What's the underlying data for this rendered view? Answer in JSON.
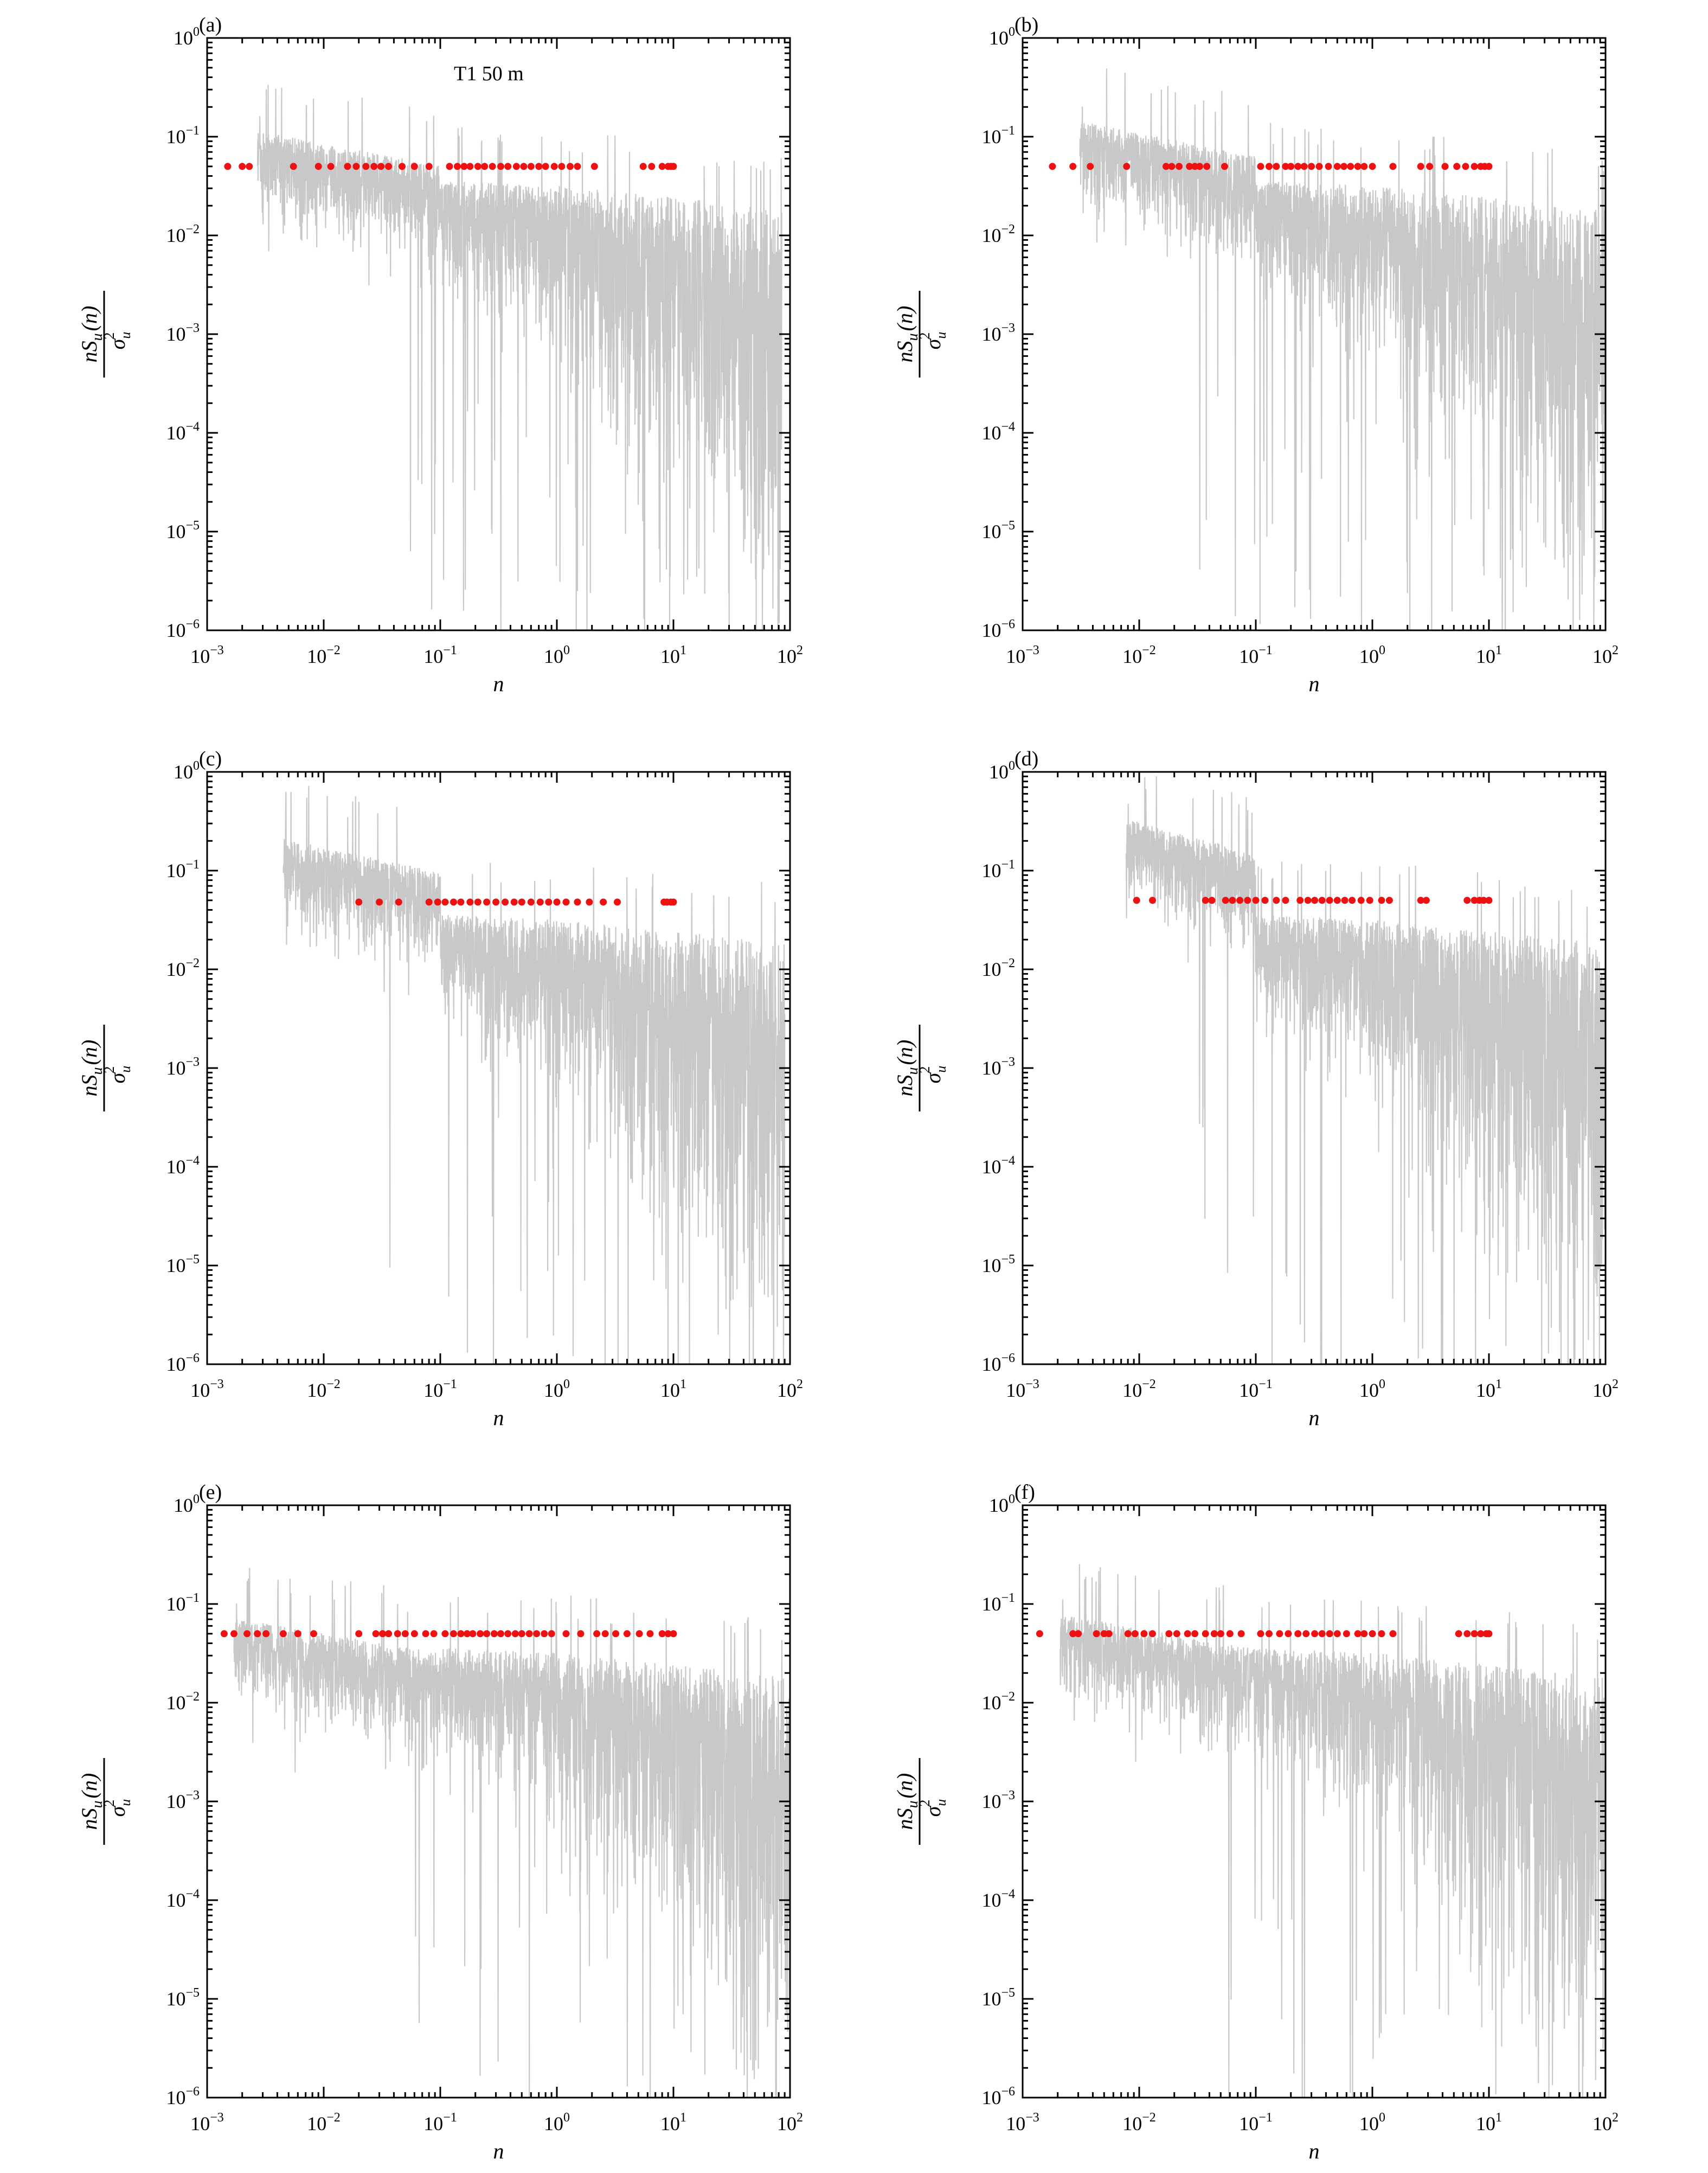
{
  "figure": {
    "panels": [
      {
        "id": "a",
        "label": "(a)",
        "annotation": "T1 50 m"
      },
      {
        "id": "b",
        "label": "(b)",
        "annotation": ""
      },
      {
        "id": "c",
        "label": "(c)",
        "annotation": ""
      },
      {
        "id": "d",
        "label": "(d)",
        "annotation": ""
      },
      {
        "id": "e",
        "label": "(e)",
        "annotation": ""
      },
      {
        "id": "f",
        "label": "(f)",
        "annotation": ""
      }
    ],
    "axis_text": {
      "xlabel": "n",
      "ylabel_numerator": "nS",
      "ylabel_sub": "u",
      "ylabel_arg": "(n)",
      "ylabel_denominator": "σ",
      "ylabel_den_sub": "u",
      "ylabel_den_sup": "2"
    },
    "x_ticks": [
      {
        "base": "10",
        "exp": "−3"
      },
      {
        "base": "10",
        "exp": "−2"
      },
      {
        "base": "10",
        "exp": "−1"
      },
      {
        "base": "10",
        "exp": "0"
      },
      {
        "base": "10",
        "exp": "1"
      },
      {
        "base": "10",
        "exp": "2"
      }
    ],
    "y_ticks": [
      {
        "base": "10",
        "exp": "0"
      },
      {
        "base": "10",
        "exp": "−1"
      },
      {
        "base": "10",
        "exp": "−2"
      },
      {
        "base": "10",
        "exp": "−3"
      },
      {
        "base": "10",
        "exp": "−4"
      },
      {
        "base": "10",
        "exp": "−5"
      },
      {
        "base": "10",
        "exp": "−6"
      }
    ],
    "colors": {
      "spectrum": "#c8c8c8",
      "points": "#ee1111",
      "axes": "#000000"
    }
  },
  "chart_data": [
    {
      "type": "line",
      "panel": "a",
      "xscale": "log",
      "yscale": "log",
      "xlim": [
        0.001,
        100
      ],
      "ylim": [
        1e-06,
        1
      ],
      "grid": false,
      "spectrum": {
        "color": "#c8c8c8",
        "n_range": [
          0.0027,
          85
        ],
        "peak_y": 0.16,
        "low_end_y": 0.017,
        "min_y": 1e-06
      },
      "points": {
        "color": "#ee1111",
        "y": 0.05,
        "x": [
          0.0015,
          0.002,
          0.0023,
          0.0055,
          0.009,
          0.0115,
          0.016,
          0.019,
          0.023,
          0.027,
          0.031,
          0.036,
          0.047,
          0.06,
          0.08,
          0.12,
          0.14,
          0.16,
          0.18,
          0.21,
          0.24,
          0.28,
          0.33,
          0.38,
          0.45,
          0.52,
          0.6,
          0.7,
          0.8,
          0.95,
          1.1,
          1.3,
          1.5,
          2.1,
          5.5,
          6.5,
          8.0,
          9.0,
          9.5,
          10.0
        ]
      }
    },
    {
      "type": "line",
      "panel": "b",
      "xscale": "log",
      "yscale": "log",
      "xlim": [
        0.001,
        100
      ],
      "ylim": [
        1e-06,
        1
      ],
      "grid": false,
      "spectrum": {
        "color": "#c8c8c8",
        "n_range": [
          0.0031,
          100
        ],
        "peak_y": 0.2,
        "low_end_y": 0.018,
        "min_y": 1e-06
      },
      "points": {
        "color": "#ee1111",
        "y": 0.05,
        "x": [
          0.0018,
          0.0027,
          0.0038,
          0.0078,
          0.017,
          0.019,
          0.022,
          0.027,
          0.03,
          0.033,
          0.038,
          0.054,
          0.11,
          0.13,
          0.15,
          0.18,
          0.2,
          0.23,
          0.26,
          0.3,
          0.35,
          0.42,
          0.5,
          0.57,
          0.65,
          0.75,
          0.85,
          1.0,
          1.5,
          2.6,
          3.1,
          4.2,
          5.3,
          6.3,
          7.5,
          8.5,
          9.2,
          10.0
        ]
      }
    },
    {
      "type": "line",
      "panel": "c",
      "xscale": "log",
      "yscale": "log",
      "xlim": [
        0.001,
        100
      ],
      "ylim": [
        1e-06,
        1
      ],
      "grid": false,
      "spectrum": {
        "color": "#c8c8c8",
        "n_range": [
          0.0045,
          90
        ],
        "peak_y": 0.3,
        "low_end_y": 0.0035,
        "min_y": 1e-06
      },
      "points": {
        "color": "#ee1111",
        "y": 0.048,
        "x": [
          0.02,
          0.03,
          0.044,
          0.08,
          0.095,
          0.11,
          0.13,
          0.15,
          0.18,
          0.21,
          0.25,
          0.3,
          0.36,
          0.43,
          0.5,
          0.6,
          0.72,
          0.85,
          1.0,
          1.2,
          1.5,
          1.9,
          2.5,
          3.3,
          8.3,
          8.8,
          9.5,
          10.0
        ]
      }
    },
    {
      "type": "line",
      "panel": "d",
      "xscale": "log",
      "yscale": "log",
      "xlim": [
        0.001,
        100
      ],
      "ylim": [
        1e-06,
        1
      ],
      "grid": false,
      "spectrum": {
        "color": "#c8c8c8",
        "n_range": [
          0.0077,
          100
        ],
        "peak_y": 0.47,
        "low_end_y": 0.017,
        "min_y": 1e-06
      },
      "points": {
        "color": "#ee1111",
        "y": 0.05,
        "x": [
          0.0095,
          0.013,
          0.037,
          0.042,
          0.055,
          0.063,
          0.073,
          0.085,
          0.1,
          0.12,
          0.15,
          0.18,
          0.24,
          0.28,
          0.32,
          0.37,
          0.43,
          0.5,
          0.58,
          0.67,
          0.8,
          0.95,
          1.2,
          1.4,
          2.6,
          2.9,
          6.5,
          7.5,
          8.3,
          9.0,
          10.0
        ]
      }
    },
    {
      "type": "line",
      "panel": "e",
      "xscale": "log",
      "yscale": "log",
      "xlim": [
        0.001,
        100
      ],
      "ylim": [
        1e-06,
        1
      ],
      "grid": false,
      "spectrum": {
        "color": "#c8c8c8",
        "n_range": [
          0.0017,
          100
        ],
        "peak_y": 0.1,
        "low_end_y": 0.004,
        "min_y": 1e-06
      },
      "points": {
        "color": "#ee1111",
        "y": 0.05,
        "x": [
          0.0014,
          0.0017,
          0.0022,
          0.0027,
          0.0032,
          0.0045,
          0.006,
          0.0082,
          0.02,
          0.028,
          0.032,
          0.036,
          0.043,
          0.05,
          0.06,
          0.075,
          0.088,
          0.11,
          0.13,
          0.15,
          0.17,
          0.19,
          0.22,
          0.25,
          0.29,
          0.33,
          0.38,
          0.44,
          0.5,
          0.58,
          0.67,
          0.78,
          0.9,
          1.2,
          1.6,
          2.2,
          2.6,
          3.2,
          4.0,
          5.1,
          6.3,
          8.0,
          9.0,
          10.0
        ]
      }
    },
    {
      "type": "line",
      "panel": "f",
      "xscale": "log",
      "yscale": "log",
      "xlim": [
        0.001,
        100
      ],
      "ylim": [
        1e-06,
        1
      ],
      "grid": false,
      "spectrum": {
        "color": "#c8c8c8",
        "n_range": [
          0.0021,
          100
        ],
        "peak_y": 0.11,
        "low_end_y": 0.0006,
        "min_y": 1e-06
      },
      "points": {
        "color": "#ee1111",
        "y": 0.05,
        "x": [
          0.0014,
          0.0027,
          0.003,
          0.0043,
          0.005,
          0.0055,
          0.008,
          0.0092,
          0.011,
          0.013,
          0.018,
          0.021,
          0.026,
          0.03,
          0.037,
          0.044,
          0.05,
          0.06,
          0.075,
          0.11,
          0.13,
          0.16,
          0.19,
          0.23,
          0.27,
          0.32,
          0.37,
          0.43,
          0.5,
          0.6,
          0.75,
          0.85,
          1.0,
          1.2,
          1.5,
          5.5,
          6.5,
          7.5,
          8.5,
          9.5,
          10.0
        ]
      }
    }
  ]
}
